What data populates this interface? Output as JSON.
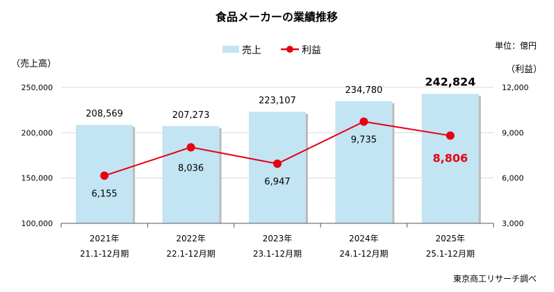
{
  "chart_data": {
    "type": "bar+line",
    "title": "食品メーカーの業績推移",
    "unit_note": "単位：億円",
    "source": "東京商工リサーチ調べ",
    "ylabel_left": "（売上高）",
    "ylabel_right": "（利益）",
    "categories": [
      "2021年",
      "2022年",
      "2023年",
      "2024年",
      "2025年"
    ],
    "subcategories": [
      "21.1-12月期",
      "22.1-12月期",
      "23.1-12月期",
      "24.1-12月期",
      "25.1-12月期"
    ],
    "left_axis": {
      "ylim": [
        100000,
        250000
      ],
      "ticks": [
        "100,000",
        "150,000",
        "200,000",
        "250,000"
      ],
      "tick_values": [
        100000,
        150000,
        200000,
        250000
      ]
    },
    "right_axis": {
      "ylim": [
        3000,
        12000
      ],
      "ticks": [
        "3,000",
        "6,000",
        "9,000",
        "12,000"
      ],
      "tick_values": [
        3000,
        6000,
        9000,
        12000
      ]
    },
    "legend_position": "top",
    "series": [
      {
        "name": "売上",
        "type": "bar",
        "axis": "left",
        "color": "#c2e4f3",
        "values": [
          208569,
          207273,
          223107,
          234780,
          242824
        ],
        "labels": [
          "208,569",
          "207,273",
          "223,107",
          "234,780",
          "242,824"
        ]
      },
      {
        "name": "利益",
        "type": "line",
        "axis": "right",
        "color": "#e60012",
        "values": [
          6155,
          8036,
          6947,
          9735,
          8806
        ],
        "labels": [
          "6,155",
          "8,036",
          "6,947",
          "9,735",
          "8,806"
        ]
      }
    ]
  }
}
